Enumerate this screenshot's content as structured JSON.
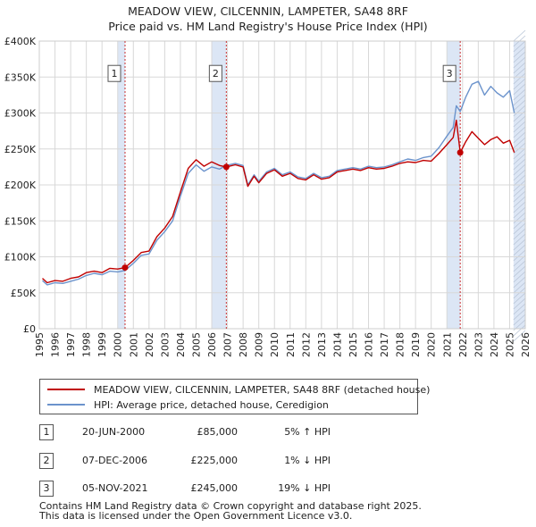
{
  "colors": {
    "property": "#c00000",
    "hpi": "#6b93cc",
    "grid": "#d8d8d8",
    "shade": "#dce6f5"
  },
  "chart_data": {
    "type": "line",
    "title": "MEADOW VIEW, CILCENNIN, LAMPETER, SA48 8RF",
    "subtitle": "Price paid vs. HM Land Registry's House Price Index (HPI)",
    "xlabel": "",
    "ylabel": "",
    "xlim": [
      1995,
      2026
    ],
    "ylim": [
      0,
      400000
    ],
    "y_ticks": [
      {
        "value": 0,
        "label": "£0"
      },
      {
        "value": 50000,
        "label": "£50K"
      },
      {
        "value": 100000,
        "label": "£100K"
      },
      {
        "value": 150000,
        "label": "£150K"
      },
      {
        "value": 200000,
        "label": "£200K"
      },
      {
        "value": 250000,
        "label": "£250K"
      },
      {
        "value": 300000,
        "label": "£300K"
      },
      {
        "value": 350000,
        "label": "£350K"
      },
      {
        "value": 400000,
        "label": "£400K"
      }
    ],
    "x_ticks": [
      "1995",
      "1996",
      "1997",
      "1998",
      "1999",
      "2000",
      "2001",
      "2002",
      "2003",
      "2004",
      "2005",
      "2006",
      "2007",
      "2008",
      "2009",
      "2010",
      "2011",
      "2012",
      "2013",
      "2014",
      "2015",
      "2016",
      "2017",
      "2018",
      "2019",
      "2020",
      "2021",
      "2022",
      "2023",
      "2024",
      "2025",
      "2026"
    ],
    "shaded_regions": [
      [
        2000.0,
        2000.47
      ],
      [
        2006.0,
        2006.93
      ],
      [
        2021.0,
        2021.85
      ],
      [
        2025.25,
        2026.0
      ]
    ],
    "series": [
      {
        "name": "MEADOW VIEW, CILCENNIN, LAMPETER, SA48 8RF (detached house)",
        "color": "#c00000",
        "x": [
          1995.2,
          1995.5,
          1996,
          1996.5,
          1997,
          1997.5,
          1998,
          1998.5,
          1999,
          1999.5,
          2000,
          2000.47,
          2001,
          2001.5,
          2002,
          2002.5,
          2003,
          2003.5,
          2004,
          2004.5,
          2005,
          2005.5,
          2006,
          2006.5,
          2006.93,
          2007.5,
          2008,
          2008.3,
          2008.7,
          2009,
          2009.5,
          2010,
          2010.5,
          2011,
          2011.5,
          2012,
          2012.5,
          2013,
          2013.5,
          2014,
          2014.5,
          2015,
          2015.5,
          2016,
          2016.5,
          2017,
          2017.5,
          2018,
          2018.5,
          2019,
          2019.5,
          2020,
          2020.5,
          2021,
          2021.4,
          2021.6,
          2021.85,
          2022.2,
          2022.6,
          2023,
          2023.4,
          2023.8,
          2024.2,
          2024.6,
          2025,
          2025.3
        ],
        "values": [
          70000,
          64000,
          67000,
          66000,
          70000,
          72000,
          78000,
          80000,
          78000,
          84000,
          83000,
          85000,
          95000,
          106000,
          108000,
          128000,
          140000,
          156000,
          190000,
          223000,
          235000,
          226000,
          232000,
          227000,
          225000,
          228000,
          225000,
          198000,
          212000,
          203000,
          216000,
          221000,
          212000,
          216000,
          209000,
          207000,
          214000,
          208000,
          210000,
          218000,
          220000,
          222000,
          220000,
          224000,
          222000,
          223000,
          226000,
          230000,
          232000,
          231000,
          234000,
          233000,
          244000,
          256000,
          266000,
          290000,
          245000,
          260000,
          274000,
          265000,
          256000,
          263000,
          267000,
          258000,
          262000,
          245000
        ]
      },
      {
        "name": "HPI: Average price, detached house, Ceredigion",
        "color": "#6b93cc",
        "x": [
          1995.2,
          1995.5,
          1996,
          1996.5,
          1997,
          1997.5,
          1998,
          1998.5,
          1999,
          1999.5,
          2000,
          2000.47,
          2001,
          2001.5,
          2002,
          2002.5,
          2003,
          2003.5,
          2004,
          2004.5,
          2005,
          2005.5,
          2006,
          2006.5,
          2006.93,
          2007.5,
          2008,
          2008.3,
          2008.7,
          2009,
          2009.5,
          2010,
          2010.5,
          2011,
          2011.5,
          2012,
          2012.5,
          2013,
          2013.5,
          2014,
          2014.5,
          2015,
          2015.5,
          2016,
          2016.5,
          2017,
          2017.5,
          2018,
          2018.5,
          2019,
          2019.5,
          2020,
          2020.5,
          2021,
          2021.4,
          2021.6,
          2021.85,
          2022.2,
          2022.6,
          2023,
          2023.4,
          2023.8,
          2024.2,
          2024.6,
          2025,
          2025.3
        ],
        "values": [
          67000,
          61000,
          64000,
          63000,
          66000,
          69000,
          74000,
          77000,
          75000,
          80000,
          79000,
          81000,
          91000,
          102000,
          104000,
          123000,
          135000,
          150000,
          184000,
          216000,
          228000,
          219000,
          225000,
          222000,
          227000,
          230000,
          227000,
          200000,
          214000,
          205000,
          218000,
          223000,
          214000,
          218000,
          211000,
          209000,
          216000,
          210000,
          212000,
          220000,
          222000,
          224000,
          222000,
          226000,
          224000,
          225000,
          228000,
          232000,
          236000,
          234000,
          238000,
          240000,
          252000,
          268000,
          280000,
          310000,
          302000,
          322000,
          340000,
          344000,
          325000,
          337000,
          328000,
          322000,
          331000,
          300000
        ]
      }
    ],
    "markers": [
      {
        "label": "1",
        "x": 2000.47,
        "value": 85000,
        "label_value": 355000
      },
      {
        "label": "2",
        "x": 2006.93,
        "value": 225000,
        "label_value": 355000
      },
      {
        "label": "3",
        "x": 2021.85,
        "value": 245000,
        "label_value": 355000
      }
    ]
  },
  "legend": {
    "property_label": "MEADOW VIEW, CILCENNIN, LAMPETER, SA48 8RF (detached house)",
    "hpi_label": "HPI: Average price, detached house, Ceredigion"
  },
  "sales": [
    {
      "num": "1",
      "date": "20-JUN-2000",
      "price": "£85,000",
      "hpi": "5% ↑ HPI"
    },
    {
      "num": "2",
      "date": "07-DEC-2006",
      "price": "£225,000",
      "hpi": "1% ↓ HPI"
    },
    {
      "num": "3",
      "date": "05-NOV-2021",
      "price": "£245,000",
      "hpi": "19% ↓ HPI"
    }
  ],
  "footer": {
    "line1": "Contains HM Land Registry data © Crown copyright and database right 2025.",
    "line2": "This data is licensed under the Open Government Licence v3.0."
  }
}
